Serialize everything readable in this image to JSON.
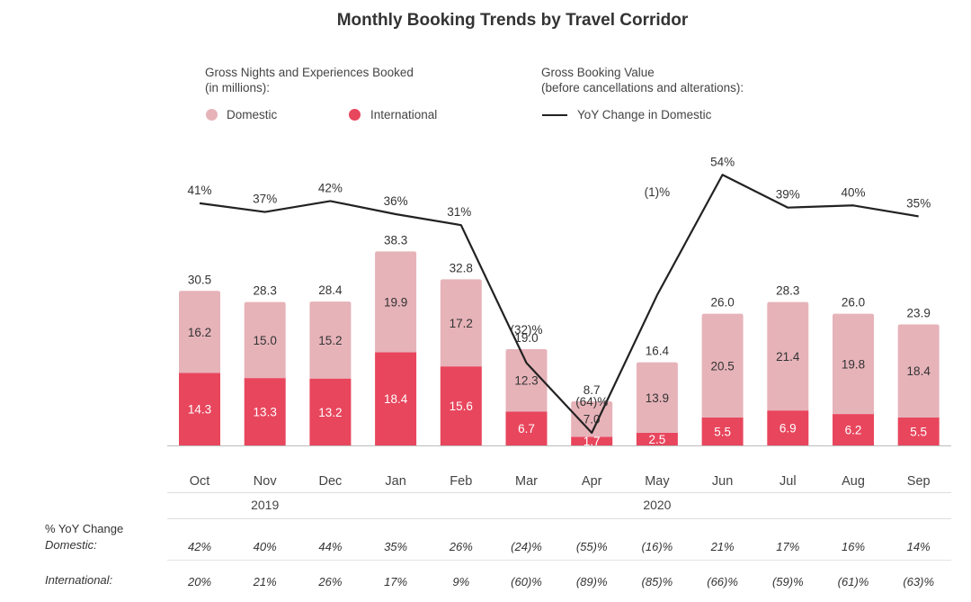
{
  "chart_data": {
    "type": "bar",
    "title": "Monthly Booking Trends by Travel Corridor",
    "bars_legend_header": [
      "Gross Nights and Experiences Booked",
      "(in millions):"
    ],
    "line_legend_header": [
      "Gross Booking Value",
      "(before cancellations and alterations):"
    ],
    "categories": [
      "Oct",
      "Nov",
      "Dec",
      "Jan",
      "Feb",
      "Mar",
      "Apr",
      "May",
      "Jun",
      "Jul",
      "Aug",
      "Sep"
    ],
    "year_groups": [
      {
        "label": "2019",
        "start": 0,
        "end": 2
      },
      {
        "label": "2020",
        "start": 3,
        "end": 11
      }
    ],
    "series": [
      {
        "name": "International",
        "color": "#e8465d",
        "values": [
          14.3,
          13.3,
          13.2,
          18.4,
          15.6,
          6.7,
          1.7,
          2.5,
          5.5,
          6.9,
          6.2,
          5.5
        ]
      },
      {
        "name": "Domestic",
        "color": "#e6b3b9",
        "values": [
          16.2,
          15.0,
          15.2,
          19.9,
          17.2,
          12.3,
          7.0,
          13.9,
          20.5,
          21.4,
          19.8,
          18.4
        ]
      }
    ],
    "totals": [
      30.5,
      28.3,
      28.4,
      38.3,
      32.8,
      19.0,
      8.7,
      16.4,
      26.0,
      28.3,
      26.0,
      23.9
    ],
    "line_series": {
      "name": "YoY Change in Domestic",
      "color": "#222222",
      "values": [
        41,
        37,
        42,
        36,
        31,
        -32,
        -64,
        -1,
        54,
        39,
        40,
        35
      ],
      "labels": [
        "41%",
        "37%",
        "42%",
        "36%",
        "31%",
        "(32)%",
        "(64)%",
        "(1)%",
        "54%",
        "39%",
        "40%",
        "35%"
      ]
    },
    "ylim": [
      0,
      40
    ],
    "table": {
      "header": "% YoY Change",
      "rows": [
        {
          "label": "Domestic:",
          "values": [
            "42%",
            "40%",
            "44%",
            "35%",
            "26%",
            "(24)%",
            "(55)%",
            "(16)%",
            "21%",
            "17%",
            "16%",
            "14%"
          ]
        },
        {
          "label": "International:",
          "values": [
            "20%",
            "21%",
            "26%",
            "17%",
            "9%",
            "(60)%",
            "(89)%",
            "(85)%",
            "(66)%",
            "(59)%",
            "(61)%",
            "(63)%"
          ]
        }
      ]
    }
  }
}
